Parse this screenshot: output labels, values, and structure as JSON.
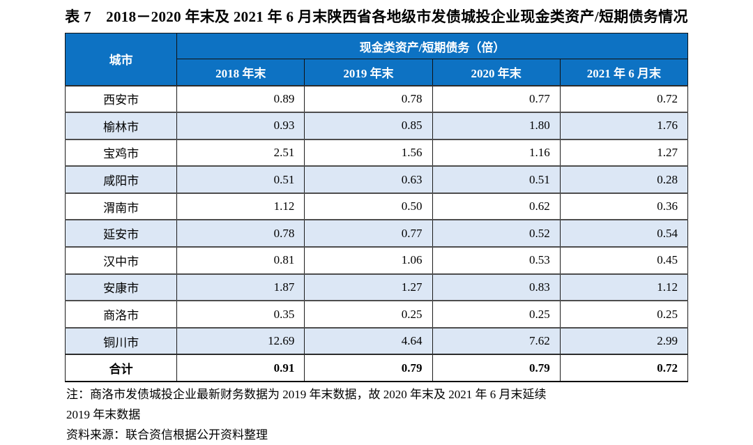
{
  "page": {
    "title": "表 7　2018－2020 年末及 2021 年 6 月末陕西省各地级市发债城投企业现金类资产/短期债务情况"
  },
  "table": {
    "corner_header": "城市",
    "group_header": "现金类资产/短期债务（倍）",
    "col_headers": [
      "2018 年末",
      "2019 年末",
      "2020 年末",
      "2021 年 6 月末"
    ],
    "rows": [
      {
        "city": "西安市",
        "values": [
          "0.89",
          "0.78",
          "0.77",
          "0.72"
        ]
      },
      {
        "city": "榆林市",
        "values": [
          "0.93",
          "0.85",
          "1.80",
          "1.76"
        ]
      },
      {
        "city": "宝鸡市",
        "values": [
          "2.51",
          "1.56",
          "1.16",
          "1.27"
        ]
      },
      {
        "city": "咸阳市",
        "values": [
          "0.51",
          "0.63",
          "0.51",
          "0.28"
        ]
      },
      {
        "city": "渭南市",
        "values": [
          "1.12",
          "0.50",
          "0.62",
          "0.36"
        ]
      },
      {
        "city": "延安市",
        "values": [
          "0.78",
          "0.77",
          "0.52",
          "0.54"
        ]
      },
      {
        "city": "汉中市",
        "values": [
          "0.81",
          "1.06",
          "0.53",
          "0.45"
        ]
      },
      {
        "city": "安康市",
        "values": [
          "1.87",
          "1.27",
          "0.83",
          "1.12"
        ]
      },
      {
        "city": "商洛市",
        "values": [
          "0.35",
          "0.25",
          "0.25",
          "0.25"
        ]
      },
      {
        "city": "铜川市",
        "values": [
          "12.69",
          "4.64",
          "7.62",
          "2.99"
        ]
      }
    ],
    "total_row": {
      "city": "合计",
      "values": [
        "0.91",
        "0.79",
        "0.79",
        "0.72"
      ]
    }
  },
  "notes": {
    "note_line1": "注：商洛市发债城投企业最新财务数据为 2019 年末数据，故 2020 年末及 2021 年 6 月末延续",
    "note_line2": "2019 年末数据",
    "source": "资料来源：联合资信根据公开资料整理"
  },
  "colors": {
    "header_blue": "#0D72C3",
    "alt_row_blue": "#DCE7F5",
    "header_text": "#FFFFFF",
    "body_text": "#000000"
  },
  "chart_data": {
    "type": "table",
    "title": "表 7　2018－2020 年末及 2021 年 6 月末陕西省各地级市发债城投企业现金类资产/短期债务情况",
    "unit": "倍",
    "categories": [
      "西安市",
      "榆林市",
      "宝鸡市",
      "咸阳市",
      "渭南市",
      "延安市",
      "汉中市",
      "安康市",
      "商洛市",
      "铜川市",
      "合计"
    ],
    "series": [
      {
        "name": "2018 年末",
        "values": [
          0.89,
          0.93,
          2.51,
          0.51,
          1.12,
          0.78,
          0.81,
          1.87,
          0.35,
          12.69,
          0.91
        ]
      },
      {
        "name": "2019 年末",
        "values": [
          0.78,
          0.85,
          1.56,
          0.63,
          0.5,
          0.77,
          1.06,
          1.27,
          0.25,
          4.64,
          0.79
        ]
      },
      {
        "name": "2020 年末",
        "values": [
          0.77,
          1.8,
          1.16,
          0.51,
          0.62,
          0.52,
          0.53,
          0.83,
          0.25,
          7.62,
          0.79
        ]
      },
      {
        "name": "2021 年 6 月末",
        "values": [
          0.72,
          1.76,
          1.27,
          0.28,
          0.36,
          0.54,
          0.45,
          1.12,
          0.25,
          2.99,
          0.72
        ]
      }
    ]
  }
}
